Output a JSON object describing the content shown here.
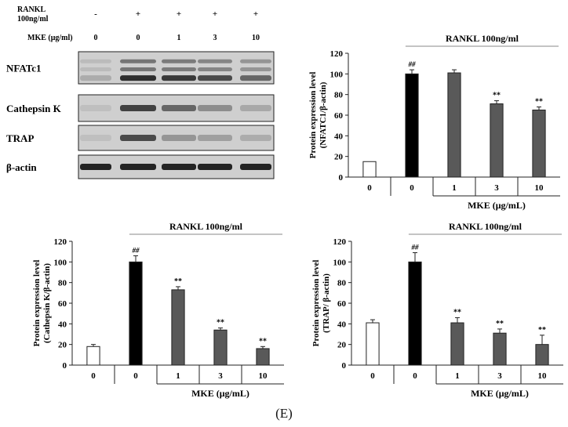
{
  "blot": {
    "header_rankl": [
      "RANKL",
      "100ng/ml"
    ],
    "header_mke": "MKE (μg/ml)",
    "rankl_signs": [
      "-",
      "+",
      "+",
      "+",
      "+"
    ],
    "mke_doses": [
      "0",
      "0",
      "1",
      "3",
      "10"
    ],
    "rows": [
      "NFATc1",
      "Cathepsin K",
      "TRAP",
      "β-actin"
    ]
  },
  "panel_label": "(E)",
  "chart_data": [
    {
      "type": "bar",
      "categories": [
        "0",
        "0",
        "1",
        "3",
        "10"
      ],
      "values": [
        15,
        100,
        101,
        71,
        65
      ],
      "errors": [
        0,
        4,
        3,
        3,
        3
      ],
      "annotations": [
        "",
        "##",
        "",
        "**",
        "**"
      ],
      "bar_colors": [
        "#ffffff",
        "#000000",
        "#595959",
        "#595959",
        "#595959"
      ],
      "ylabel": [
        "Protein expression level",
        "(NFATC1/β-actin)"
      ],
      "xlabel": "MKE (μg/mL)",
      "group_label": "RANKL 100ng/ml",
      "ylim": [
        0,
        120
      ],
      "yticks": [
        0,
        20,
        40,
        60,
        80,
        100,
        120
      ]
    },
    {
      "type": "bar",
      "categories": [
        "0",
        "0",
        "1",
        "3",
        "10"
      ],
      "values": [
        18,
        100,
        73,
        34,
        16
      ],
      "errors": [
        2,
        6,
        3,
        2,
        2
      ],
      "annotations": [
        "",
        "##",
        "**",
        "**",
        "**"
      ],
      "bar_colors": [
        "#ffffff",
        "#000000",
        "#595959",
        "#595959",
        "#595959"
      ],
      "ylabel": [
        "Protein expression level",
        "(Cathepsin K/β-actin)"
      ],
      "xlabel": "MKE (μg/mL)",
      "group_label": "RANKL 100ng/ml",
      "ylim": [
        0,
        120
      ],
      "yticks": [
        0,
        20,
        40,
        60,
        80,
        100,
        120
      ]
    },
    {
      "type": "bar",
      "categories": [
        "0",
        "0",
        "1",
        "3",
        "10"
      ],
      "values": [
        41,
        100,
        41,
        31,
        20
      ],
      "errors": [
        3,
        9,
        5,
        4,
        9
      ],
      "annotations": [
        "",
        "##",
        "**",
        "**",
        "**"
      ],
      "bar_colors": [
        "#ffffff",
        "#000000",
        "#595959",
        "#595959",
        "#595959"
      ],
      "ylabel": [
        "Protein expression level",
        "(TRAP/ β-actin)"
      ],
      "xlabel": "MKE (μg/mL)",
      "group_label": "RANKL 100ng/ml",
      "ylim": [
        0,
        120
      ],
      "yticks": [
        0,
        20,
        40,
        60,
        80,
        100,
        120
      ]
    }
  ]
}
